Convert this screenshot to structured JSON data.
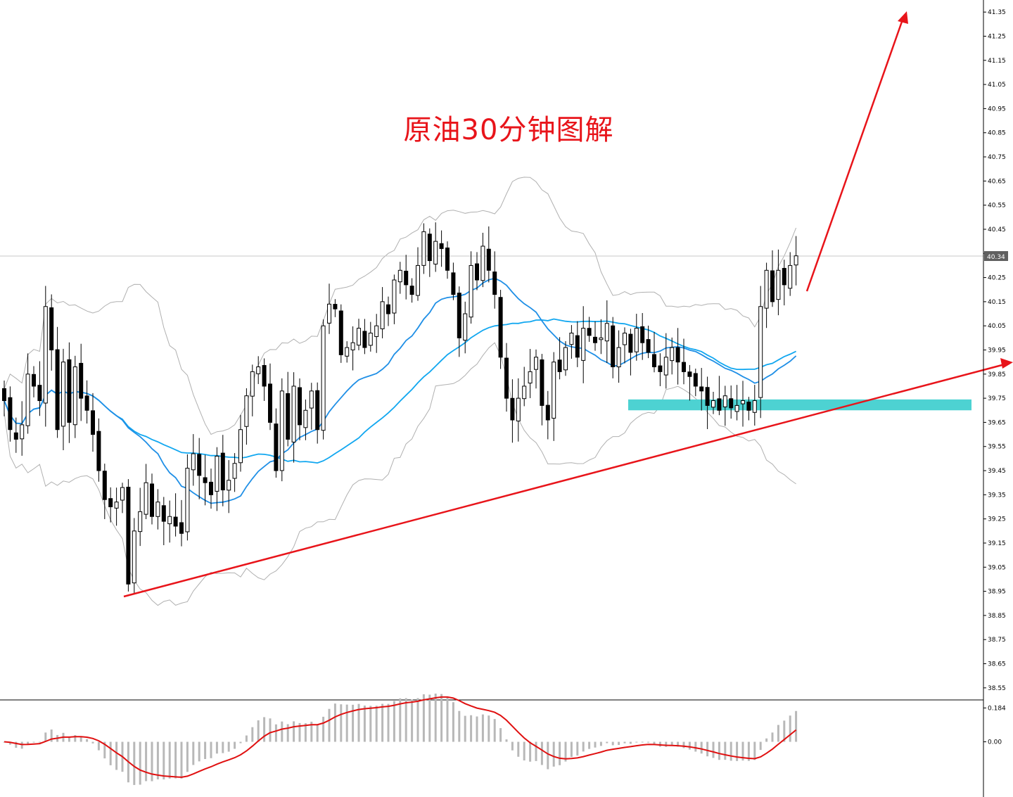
{
  "annotation": {
    "title": "原油30分钟图解"
  },
  "current_price": "40.34",
  "colors": {
    "annotation": "#e8141a",
    "support_zone": "#4dd2d2",
    "ma_fast": "#1f8fe6",
    "ma_slow": "#11a7f0",
    "bollinger": "#b0b0b0",
    "macd_line": "#e01010",
    "histogram": "#b8b8b8"
  },
  "chart_data": [
    {
      "type": "candlestick",
      "ylim": [
        38.5,
        41.4
      ],
      "price_axis_ticks": [
        "41.35",
        "41.25",
        "41.15",
        "41.05",
        "40.95",
        "40.85",
        "40.75",
        "40.65",
        "40.55",
        "40.45",
        "40.35",
        "40.25",
        "40.15",
        "40.05",
        "39.95",
        "39.85",
        "39.75",
        "39.65",
        "39.55",
        "39.45",
        "39.35",
        "39.25",
        "39.15",
        "39.05",
        "38.95",
        "38.85",
        "38.75",
        "38.65",
        "38.55"
      ],
      "close": [
        39.74,
        39.62,
        39.58,
        39.64,
        39.85,
        39.8,
        39.74,
        40.13,
        39.95,
        39.62,
        39.9,
        39.65,
        39.88,
        39.75,
        39.7,
        39.6,
        39.45,
        39.33,
        39.3,
        39.32,
        39.38,
        38.98,
        39.2,
        39.28,
        39.4,
        39.26,
        39.32,
        39.24,
        39.26,
        39.22,
        39.19,
        39.46,
        39.52,
        39.43,
        39.4,
        39.35,
        39.51,
        39.37,
        39.41,
        39.48,
        39.62,
        39.76,
        39.86,
        39.88,
        39.8,
        39.65,
        39.45,
        39.78,
        39.58,
        39.8,
        39.64,
        39.7,
        39.78,
        39.62,
        40.05,
        40.14,
        40.12,
        39.93,
        39.96,
        39.98,
        40.04,
        39.96,
        40.02,
        40.05,
        40.15,
        40.1,
        40.24,
        40.28,
        40.22,
        40.18,
        40.3,
        40.44,
        40.32,
        40.4,
        40.37,
        40.28,
        40.18,
        40.0,
        40.1,
        40.3,
        40.24,
        40.38,
        40.28,
        40.18,
        39.92,
        39.75,
        39.66,
        39.75,
        39.8,
        39.86,
        39.92,
        39.72,
        39.66,
        39.9,
        39.86,
        39.96,
        40.02,
        39.92,
        40.04,
        40.01,
        39.98,
        40.0,
        40.06,
        39.88,
        39.96,
        40.02,
        39.94,
        40.04,
        39.98,
        39.94,
        39.88,
        39.86,
        39.92,
        39.96,
        39.9,
        39.86,
        39.84,
        39.8,
        39.78,
        39.72,
        39.74,
        39.7,
        39.76,
        39.71,
        39.72,
        39.74,
        39.7,
        39.74,
        40.13,
        40.28,
        40.15,
        40.28,
        40.22,
        40.3,
        40.34
      ],
      "series": [
        {
          "name": "",
          "kind": "moving-average",
          "color_key": "ma_fast"
        },
        {
          "name": "",
          "kind": "moving-average",
          "color_key": "ma_slow"
        },
        {
          "name": "",
          "kind": "bollinger-bands",
          "color_key": "bollinger"
        }
      ],
      "annotations": [
        {
          "kind": "trendline-arrow",
          "color_key": "annotation"
        },
        {
          "kind": "projection-arrow",
          "color_key": "annotation"
        },
        {
          "kind": "support-zone",
          "color_key": "support_zone",
          "y_range": [
            39.7,
            39.745
          ]
        }
      ]
    },
    {
      "type": "bar",
      "panel": "oscillator",
      "ylim": [
        -0.3,
        0.22
      ],
      "axis_ticks": [
        "0.184",
        "0.00"
      ]
    }
  ]
}
